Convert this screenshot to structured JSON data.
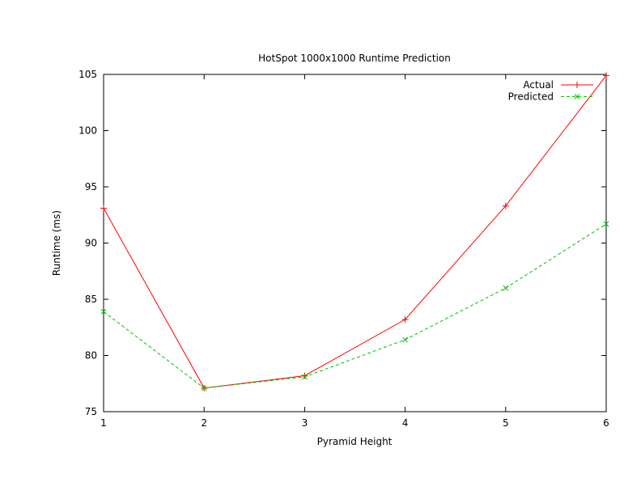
{
  "chart_data": {
    "type": "line",
    "title": "HotSpot 1000x1000 Runtime Prediction",
    "xlabel": "Pyramid Height",
    "ylabel": "Runtime (ms)",
    "xlim": [
      1,
      6
    ],
    "ylim": [
      75,
      105
    ],
    "x_ticks": [
      "1",
      "2",
      "3",
      "4",
      "5",
      "6"
    ],
    "y_ticks": [
      "75",
      "80",
      "85",
      "90",
      "95",
      "100",
      "105"
    ],
    "x_tick_values": [
      1,
      2,
      3,
      4,
      5,
      6
    ],
    "y_tick_values": [
      75,
      80,
      85,
      90,
      95,
      100,
      105
    ],
    "grid": false,
    "legend_position": "top-right",
    "x": [
      1,
      2,
      3,
      4,
      5,
      6
    ],
    "series": [
      {
        "name": "Actual",
        "values": [
          93.1,
          77.1,
          78.2,
          83.2,
          93.3,
          104.9
        ],
        "color": "#ff0000",
        "marker": "plus",
        "dash": "solid"
      },
      {
        "name": "Predicted",
        "values": [
          83.9,
          77.1,
          78.1,
          81.4,
          86.0,
          91.7
        ],
        "color": "#00c000",
        "marker": "cross",
        "dash": "dashed"
      }
    ]
  }
}
